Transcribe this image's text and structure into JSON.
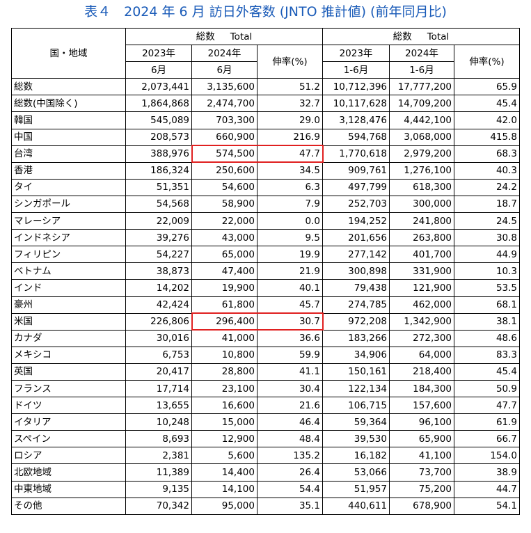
{
  "title": "表４　2024 年 6 月  訪日外客数 (JNTO 推計値) (前年同月比)",
  "header": {
    "region": "国・地域",
    "group_june": {
      "label": "総数",
      "label_en": "Total"
    },
    "group_ytd": {
      "label": "総数",
      "label_en": "Total"
    },
    "y2023": "2023年",
    "y2024": "2024年",
    "month_june": "6月",
    "month_ytd": "1-6月",
    "growth": "伸率(%)"
  },
  "rows": [
    {
      "name": "総数",
      "j2023": "2,073,441",
      "j2024": "3,135,600",
      "jrate": "51.2",
      "y2023": "10,712,396",
      "y2024": "17,777,200",
      "yrate": "65.9"
    },
    {
      "name": "総数(中国除く)",
      "j2023": "1,864,868",
      "j2024": "2,474,700",
      "jrate": "32.7",
      "y2023": "10,117,628",
      "y2024": "14,709,200",
      "yrate": "45.4"
    },
    {
      "name": "韓国",
      "j2023": "545,089",
      "j2024": "703,300",
      "jrate": "29.0",
      "y2023": "3,128,476",
      "y2024": "4,442,100",
      "yrate": "42.0"
    },
    {
      "name": "中国",
      "j2023": "208,573",
      "j2024": "660,900",
      "jrate": "216.9",
      "y2023": "594,768",
      "y2024": "3,068,000",
      "yrate": "415.8"
    },
    {
      "name": "台湾",
      "j2023": "388,976",
      "j2024": "574,500",
      "jrate": "47.7",
      "y2023": "1,770,618",
      "y2024": "2,979,200",
      "yrate": "68.3",
      "highlight": true
    },
    {
      "name": "香港",
      "j2023": "186,324",
      "j2024": "250,600",
      "jrate": "34.5",
      "y2023": "909,761",
      "y2024": "1,276,100",
      "yrate": "40.3"
    },
    {
      "name": "タイ",
      "j2023": "51,351",
      "j2024": "54,600",
      "jrate": "6.3",
      "y2023": "497,799",
      "y2024": "618,300",
      "yrate": "24.2"
    },
    {
      "name": "シンガポール",
      "j2023": "54,568",
      "j2024": "58,900",
      "jrate": "7.9",
      "y2023": "252,703",
      "y2024": "300,000",
      "yrate": "18.7"
    },
    {
      "name": "マレーシア",
      "j2023": "22,009",
      "j2024": "22,000",
      "jrate": "0.0",
      "y2023": "194,252",
      "y2024": "241,800",
      "yrate": "24.5"
    },
    {
      "name": "インドネシア",
      "j2023": "39,276",
      "j2024": "43,000",
      "jrate": "9.5",
      "y2023": "201,656",
      "y2024": "263,800",
      "yrate": "30.8"
    },
    {
      "name": "フィリピン",
      "j2023": "54,227",
      "j2024": "65,000",
      "jrate": "19.9",
      "y2023": "277,142",
      "y2024": "401,700",
      "yrate": "44.9"
    },
    {
      "name": "ベトナム",
      "j2023": "38,873",
      "j2024": "47,400",
      "jrate": "21.9",
      "y2023": "300,898",
      "y2024": "331,900",
      "yrate": "10.3"
    },
    {
      "name": "インド",
      "j2023": "14,202",
      "j2024": "19,900",
      "jrate": "40.1",
      "y2023": "79,438",
      "y2024": "121,900",
      "yrate": "53.5"
    },
    {
      "name": "豪州",
      "j2023": "42,424",
      "j2024": "61,800",
      "jrate": "45.7",
      "y2023": "274,785",
      "y2024": "462,000",
      "yrate": "68.1"
    },
    {
      "name": "米国",
      "j2023": "226,806",
      "j2024": "296,400",
      "jrate": "30.7",
      "y2023": "972,208",
      "y2024": "1,342,900",
      "yrate": "38.1",
      "highlight": true
    },
    {
      "name": "カナダ",
      "j2023": "30,016",
      "j2024": "41,000",
      "jrate": "36.6",
      "y2023": "183,266",
      "y2024": "272,300",
      "yrate": "48.6"
    },
    {
      "name": "メキシコ",
      "j2023": "6,753",
      "j2024": "10,800",
      "jrate": "59.9",
      "y2023": "34,906",
      "y2024": "64,000",
      "yrate": "83.3"
    },
    {
      "name": "英国",
      "j2023": "20,417",
      "j2024": "28,800",
      "jrate": "41.1",
      "y2023": "150,161",
      "y2024": "218,400",
      "yrate": "45.4"
    },
    {
      "name": "フランス",
      "j2023": "17,714",
      "j2024": "23,100",
      "jrate": "30.4",
      "y2023": "122,134",
      "y2024": "184,300",
      "yrate": "50.9"
    },
    {
      "name": "ドイツ",
      "j2023": "13,655",
      "j2024": "16,600",
      "jrate": "21.6",
      "y2023": "106,715",
      "y2024": "157,600",
      "yrate": "47.7"
    },
    {
      "name": "イタリア",
      "j2023": "10,248",
      "j2024": "15,000",
      "jrate": "46.4",
      "y2023": "59,364",
      "y2024": "96,100",
      "yrate": "61.9"
    },
    {
      "name": "スペイン",
      "j2023": "8,693",
      "j2024": "12,900",
      "jrate": "48.4",
      "y2023": "39,530",
      "y2024": "65,900",
      "yrate": "66.7"
    },
    {
      "name": "ロシア",
      "j2023": "2,381",
      "j2024": "5,600",
      "jrate": "135.2",
      "y2023": "16,182",
      "y2024": "41,100",
      "yrate": "154.0"
    },
    {
      "name": "北欧地域",
      "j2023": "11,389",
      "j2024": "14,400",
      "jrate": "26.4",
      "y2023": "53,066",
      "y2024": "73,700",
      "yrate": "38.9"
    },
    {
      "name": "中東地域",
      "j2023": "9,135",
      "j2024": "14,100",
      "jrate": "54.4",
      "y2023": "51,957",
      "y2024": "75,200",
      "yrate": "44.7"
    },
    {
      "name": "その他",
      "j2023": "70,342",
      "j2024": "95,000",
      "jrate": "35.1",
      "y2023": "440,611",
      "y2024": "678,900",
      "yrate": "54.1"
    }
  ],
  "colors": {
    "title": "#1a5bb8",
    "highlight_border": "#e02020"
  }
}
